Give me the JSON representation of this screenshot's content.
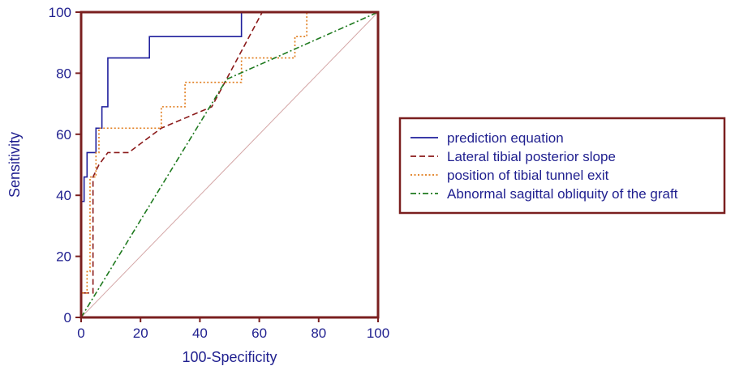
{
  "chart_data": {
    "type": "line",
    "xlabel": "100-Specificity",
    "ylabel": "Sensitivity",
    "xlim": [
      0,
      100
    ],
    "ylim": [
      0,
      100
    ],
    "xticks": [
      "0",
      "20",
      "40",
      "60",
      "80",
      "100"
    ],
    "yticks": [
      "0",
      "20",
      "40",
      "60",
      "80",
      "100"
    ],
    "grid": false,
    "legend_position": "right",
    "reference_line": {
      "x": [
        0,
        100
      ],
      "y": [
        0,
        100
      ],
      "color": "#d4a6a6"
    },
    "series": [
      {
        "name": "prediction equation",
        "color": "#1f1f9c",
        "dash": "solid",
        "x": [
          0,
          0,
          1,
          1,
          2,
          2,
          5,
          5,
          7,
          7,
          9,
          9,
          23,
          23,
          54,
          54,
          100
        ],
        "y": [
          0,
          38,
          38,
          46,
          46,
          54,
          54,
          62,
          62,
          69,
          69,
          85,
          85,
          92,
          92,
          100,
          100
        ]
      },
      {
        "name": "Lateral tibial posterior slope",
        "color": "#8b1a1a",
        "dash": "dashed",
        "x": [
          0,
          0,
          4,
          4,
          6,
          9,
          16,
          27,
          44,
          61,
          100
        ],
        "y": [
          0,
          8,
          8,
          46,
          50,
          54,
          54,
          62,
          69,
          100,
          100
        ]
      },
      {
        "name": "position of tibial tunnel exit",
        "color": "#e07b1a",
        "dash": "dotted",
        "x": [
          0,
          0,
          2,
          2,
          3,
          3,
          5,
          5,
          6,
          6,
          27,
          27,
          35,
          35,
          54,
          54,
          72,
          72,
          76,
          76,
          100
        ],
        "y": [
          0,
          8,
          8,
          15,
          15,
          46,
          46,
          54,
          54,
          62,
          62,
          69,
          69,
          77,
          77,
          85,
          85,
          92,
          92,
          100,
          100
        ]
      },
      {
        "name": "Abnormal sagittal obliquity of the graft",
        "color": "#1f7a1f",
        "dash": "dashdot",
        "x": [
          0,
          49,
          100
        ],
        "y": [
          0,
          78,
          100
        ]
      }
    ]
  }
}
